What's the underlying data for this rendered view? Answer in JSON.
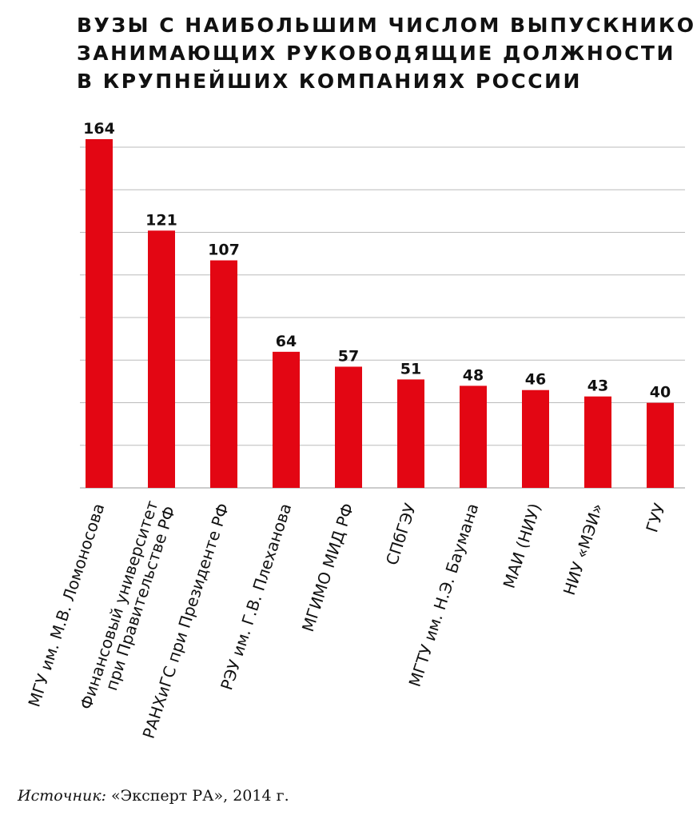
{
  "chart_data": {
    "type": "bar",
    "title_lines": [
      "ВУЗЫ С НАИБОЛЬШИМ ЧИСЛОМ ВЫПУСКНИКОВ,",
      "ЗАНИМАЮЩИХ РУКОВОДЯЩИЕ ДОЛЖНОСТИ",
      "В КРУПНЕЙШИХ КОМПАНИЯХ РОССИИ"
    ],
    "categories": [
      [
        "МГУ им. М.В. Ломоносова"
      ],
      [
        "Финансовый университет",
        "при Правительстве РФ"
      ],
      [
        "РАНХиГС при Президенте РФ"
      ],
      [
        "РЭУ им. Г.В. Плеханова"
      ],
      [
        "МГИМО МИД РФ"
      ],
      [
        "СПбГЭУ"
      ],
      [
        "МГТУ им. Н.Э. Баумана"
      ],
      [
        "МАИ (НИУ)"
      ],
      [
        "НИУ «МЭИ»"
      ],
      [
        "ГУУ"
      ]
    ],
    "values": [
      164,
      121,
      107,
      64,
      57,
      51,
      48,
      46,
      43,
      40
    ],
    "data_labels": [
      "164",
      "121",
      "107",
      "64",
      "57",
      "51",
      "48",
      "46",
      "43",
      "40"
    ],
    "ylim": [
      0,
      164
    ],
    "gridlines": true,
    "bar_color": "#e30613",
    "grid_color": "#bbbbbb"
  },
  "source": {
    "label": "Источник:",
    "text": " «Эксперт РА», 2014 г."
  }
}
